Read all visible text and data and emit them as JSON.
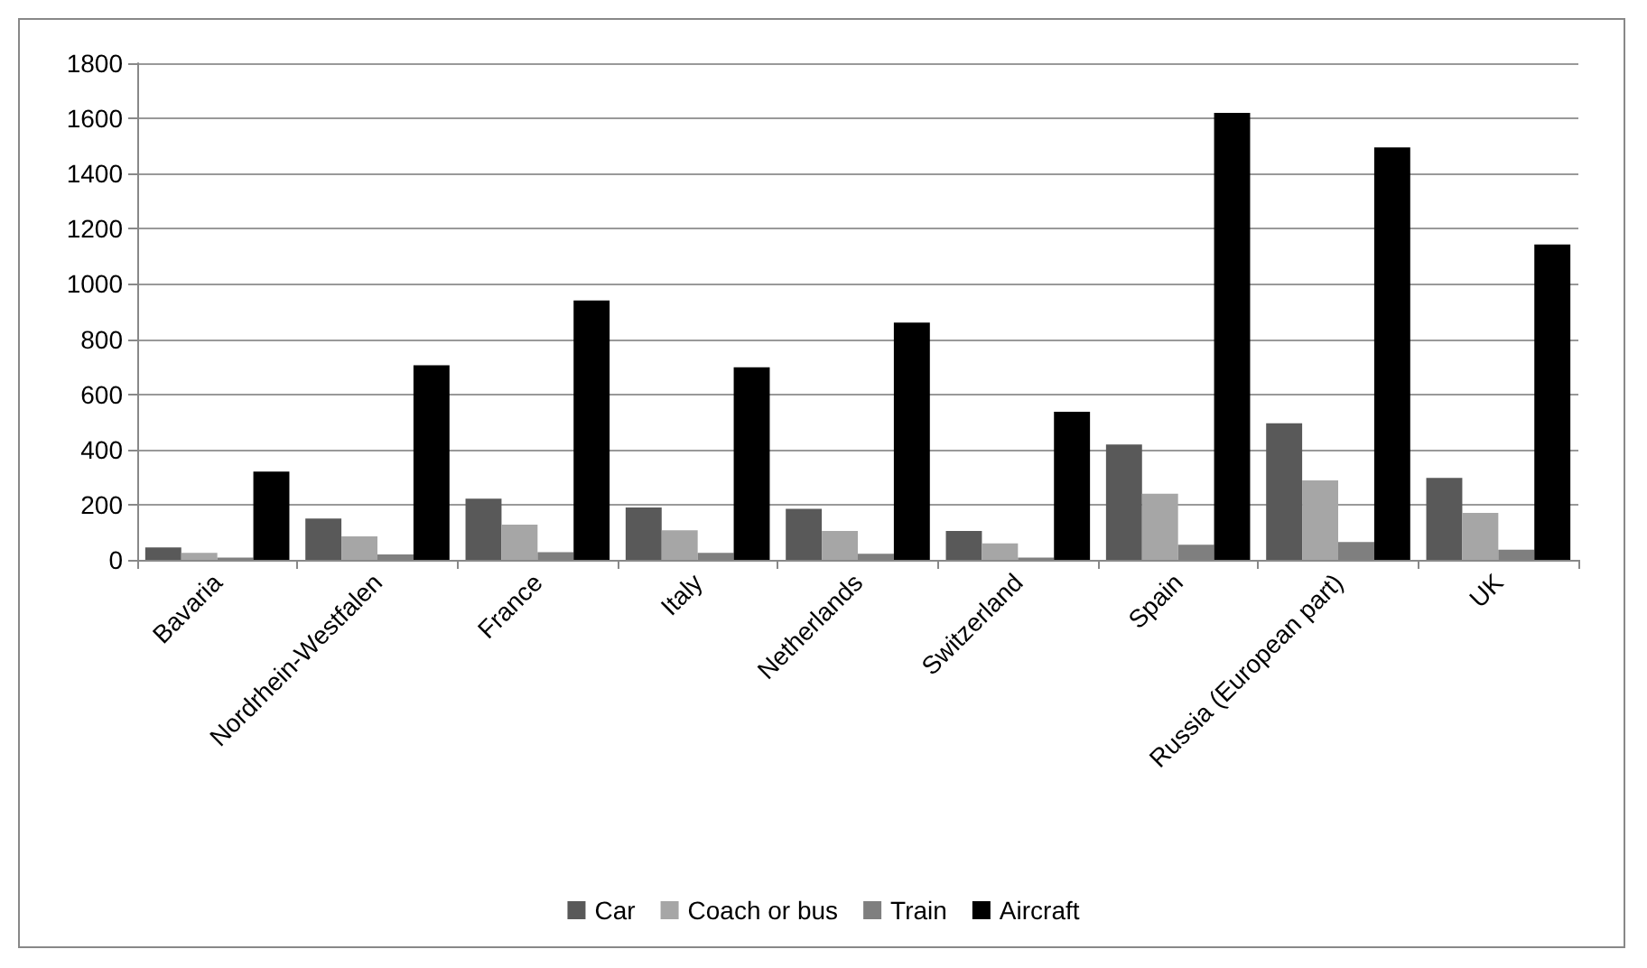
{
  "chart_data": {
    "type": "bar",
    "categories": [
      "Bavaria",
      "Nordrhein-Westfalen",
      "France",
      "Italy",
      "Netherlands",
      "Switzerland",
      "Spain",
      "Russia (European part)",
      "UK"
    ],
    "series": [
      {
        "name": "Car",
        "color": "#595959",
        "values": [
          45,
          150,
          222,
          190,
          185,
          105,
          418,
          495,
          297
        ]
      },
      {
        "name": "Coach or bus",
        "color": "#a6a6a6",
        "values": [
          25,
          85,
          128,
          107,
          105,
          60,
          240,
          288,
          170
        ]
      },
      {
        "name": "Train",
        "color": "#7f7f7f",
        "values": [
          8,
          20,
          28,
          25,
          22,
          8,
          55,
          65,
          37
        ]
      },
      {
        "name": "Aircraft",
        "color": "#000000",
        "values": [
          320,
          705,
          940,
          698,
          860,
          537,
          1620,
          1495,
          1143
        ]
      }
    ],
    "ylim": [
      0,
      1800
    ],
    "yticks": [
      0,
      200,
      400,
      600,
      800,
      1000,
      1200,
      1400,
      1600,
      1800
    ],
    "grid": "y",
    "legend": "bottom"
  }
}
